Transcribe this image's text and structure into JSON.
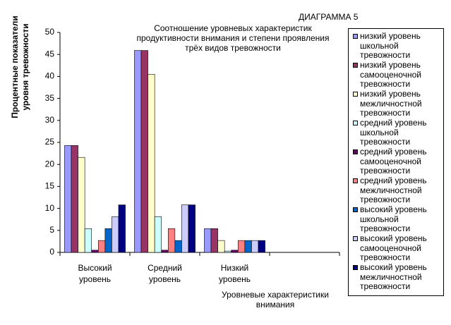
{
  "chart_data": {
    "type": "bar",
    "corner_label": "ДИАГРАММА 5",
    "title": [
      "Соотношение уровневых характеристик",
      "продуктивности внимания и степени проявления",
      "трёх видов тревожности"
    ],
    "y_label": [
      "Процентные показатели",
      "уровня тревожности"
    ],
    "x_label": [
      "Уровневые характеристики",
      "внимания"
    ],
    "categories": [
      "Высокий уровень",
      "Средний уровень",
      "Низкий уровень",
      null
    ],
    "ylim": [
      0,
      50
    ],
    "yticks": [
      0,
      5,
      10,
      15,
      20,
      25,
      30,
      35,
      40,
      45,
      50
    ],
    "grid": false,
    "legend": "right",
    "series": [
      {
        "name": "низкий уровень школьной тревожности",
        "color": "#9999FF",
        "values": [
          24.3,
          45.9,
          5.4,
          null
        ]
      },
      {
        "name": "низкий уровень самооценочной тревожности",
        "color": "#993366",
        "values": [
          24.3,
          45.9,
          5.4,
          null
        ]
      },
      {
        "name": "низкий уровень межличностной тревожности",
        "color": "#FFFFCC",
        "values": [
          21.6,
          40.5,
          2.7,
          null
        ]
      },
      {
        "name": "средний уровень школьной тревожности",
        "color": "#CCFFFF",
        "values": [
          5.4,
          8.1,
          0.3,
          null
        ]
      },
      {
        "name": "средний уровень самооценочной тревожности",
        "color": "#660066",
        "values": [
          0.5,
          0.5,
          0.5,
          null
        ]
      },
      {
        "name": "средний уровень межличностной тревожности",
        "color": "#FF8080",
        "values": [
          2.7,
          5.4,
          2.7,
          null
        ]
      },
      {
        "name": "высокий уровень школьной тревожности",
        "color": "#0066CC",
        "values": [
          5.4,
          2.7,
          2.7,
          null
        ]
      },
      {
        "name": "высокий уровень самооценочной тревожности",
        "color": "#CCCCFF",
        "values": [
          8.1,
          10.8,
          2.7,
          null
        ]
      },
      {
        "name": "высокий уровень межличностной тревожности",
        "color": "#000080",
        "values": [
          10.8,
          10.8,
          2.7,
          null
        ]
      }
    ]
  }
}
